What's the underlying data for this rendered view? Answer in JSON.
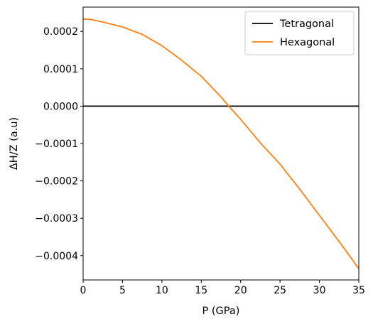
{
  "chart_data": {
    "type": "line",
    "title": "",
    "xlabel": "P (GPa)",
    "ylabel": "ΔH/Z (a.u)",
    "xlim": [
      0,
      35
    ],
    "ylim": [
      -0.000465,
      0.000265
    ],
    "xticks": [
      0,
      5,
      10,
      15,
      20,
      25,
      30,
      35
    ],
    "xtick_labels": [
      "0",
      "5",
      "10",
      "15",
      "20",
      "25",
      "30",
      "35"
    ],
    "yticks": [
      0.0002,
      0.0001,
      0.0,
      -0.0001,
      -0.0002,
      -0.0003,
      -0.0004
    ],
    "ytick_labels": [
      "0.0002",
      "0.0001",
      "0.0000",
      "−0.0001",
      "−0.0002",
      "−0.0003",
      "−0.0004"
    ],
    "grid": false,
    "legend_position": "top-right",
    "series": [
      {
        "name": "Tetragonal",
        "color": "#000000",
        "x": [
          0,
          35
        ],
        "y": [
          0.0,
          0.0
        ]
      },
      {
        "name": "Hexagonal",
        "color": "#ff7f0e",
        "x": [
          0,
          1,
          2.5,
          5,
          7.5,
          10,
          12.5,
          15,
          17.5,
          18.5,
          20,
          22.5,
          25,
          27.5,
          30,
          32.5,
          34,
          35
        ],
        "y": [
          0.000233,
          0.000232,
          0.000225,
          0.000212,
          0.000192,
          0.000162,
          0.000123,
          8e-05,
          2.5e-05,
          0.0,
          -3.5e-05,
          -9.8e-05,
          -0.000155,
          -0.000222,
          -0.000292,
          -0.000362,
          -0.000405,
          -0.000435
        ]
      }
    ]
  }
}
